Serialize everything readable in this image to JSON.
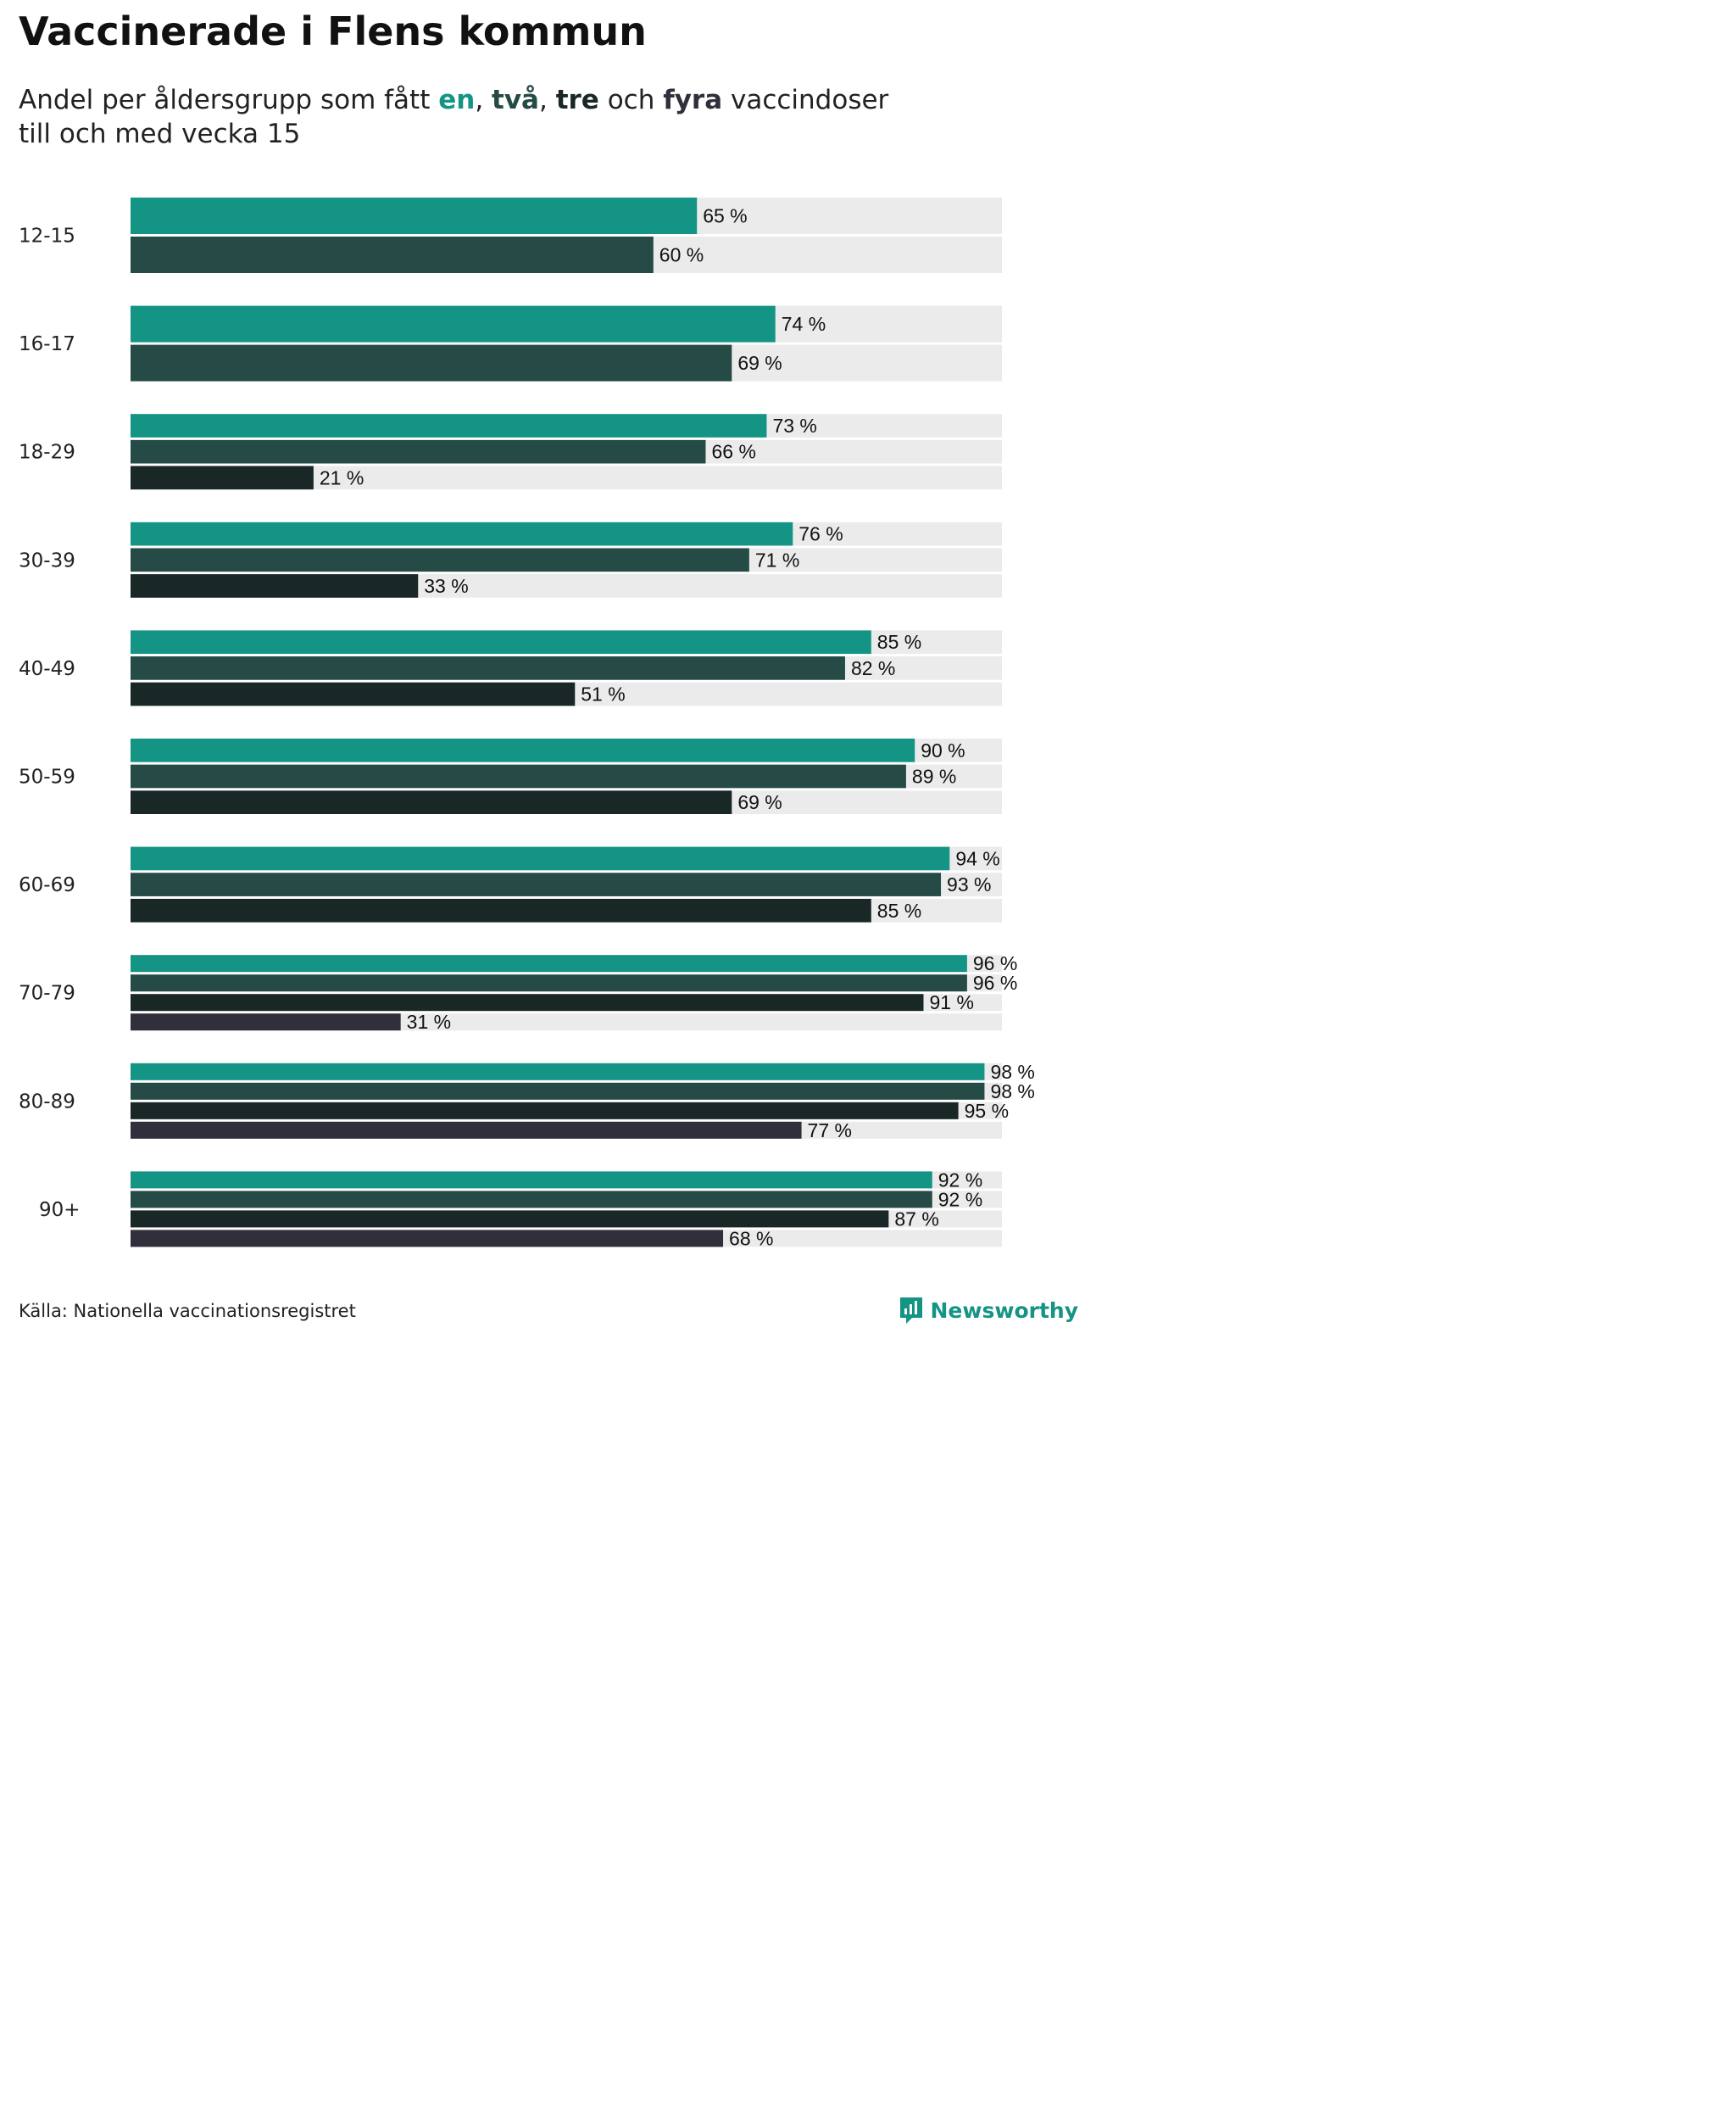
{
  "title": "Vaccinerade i Flens kommun",
  "subtitle": {
    "prefix": "Andel per åldersgrupp som fått ",
    "dose1": "en",
    "sep1": ", ",
    "dose2": "två",
    "sep2": ", ",
    "dose3": "tre",
    "mid": " och ",
    "dose4": "fyra",
    "suffix": " vaccindoser",
    "line2": "till och med vecka 15"
  },
  "source": "Källa: Nationella vaccinationsregistret",
  "brand": "Newsworthy",
  "colors": {
    "dose1": "#149484",
    "dose2": "#264b47",
    "dose3": "#192726",
    "dose4": "#302f3b",
    "track": "#ebebeb"
  },
  "chart_data": {
    "type": "bar",
    "orientation": "horizontal",
    "xlim": [
      0,
      100
    ],
    "unit": "%",
    "categories": [
      "12-15",
      "16-17",
      "18-29",
      "30-39",
      "40-49",
      "50-59",
      "60-69",
      "70-79",
      "80-89",
      "90+"
    ],
    "series": [
      {
        "name": "en",
        "values": [
          65,
          74,
          73,
          76,
          85,
          90,
          94,
          96,
          98,
          92
        ]
      },
      {
        "name": "två",
        "values": [
          60,
          69,
          66,
          71,
          82,
          89,
          93,
          96,
          98,
          92
        ]
      },
      {
        "name": "tre",
        "values": [
          null,
          null,
          21,
          33,
          51,
          69,
          85,
          91,
          95,
          87
        ]
      },
      {
        "name": "fyra",
        "values": [
          null,
          null,
          null,
          null,
          null,
          null,
          null,
          31,
          77,
          68
        ]
      }
    ],
    "value_labels": {
      "en": [
        "65 %",
        "74 %",
        "73 %",
        "76 %",
        "85 %",
        "90 %",
        "94 %",
        "96 %",
        "98 %",
        "92 %"
      ],
      "två": [
        "60 %",
        "69 %",
        "66 %",
        "71 %",
        "82 %",
        "89 %",
        "93 %",
        "96 %",
        "98 %",
        "92 %"
      ],
      "tre": [
        null,
        null,
        "21 %",
        "33 %",
        "51 %",
        "69 %",
        "85 %",
        "91 %",
        "95 %",
        "87 %"
      ],
      "fyra": [
        null,
        null,
        null,
        null,
        null,
        null,
        null,
        "31 %",
        "77 %",
        "68 %"
      ]
    },
    "legend": "inline in subtitle",
    "grid": false
  }
}
